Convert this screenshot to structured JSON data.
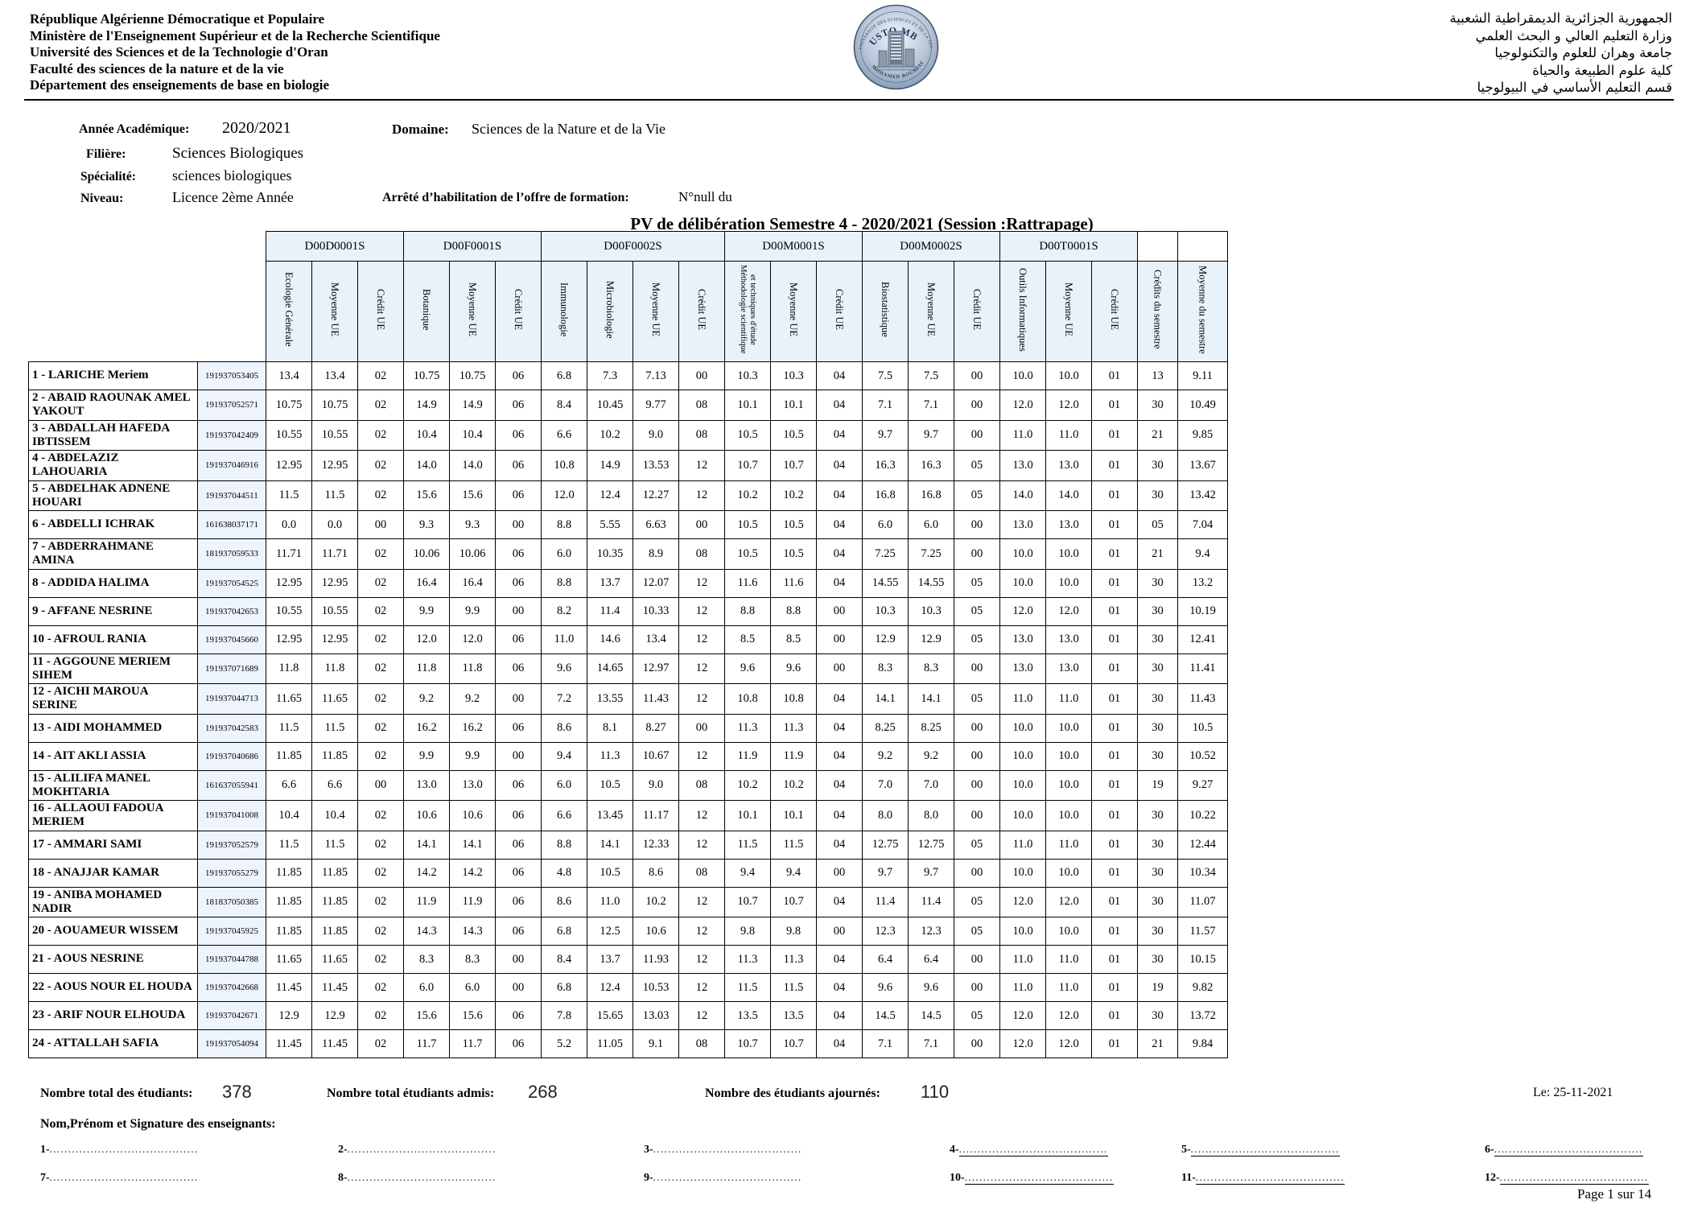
{
  "header": {
    "french_lines": [
      "République Algérienne Démocratique et Populaire",
      "Ministère de l'Enseignement Supérieur et de la Recherche Scientifique",
      "Université des Sciences et de la Technologie d'Oran",
      "Faculté des sciences de la nature et de la vie",
      "Département des enseignements de base en biologie"
    ],
    "arabic_lines": [
      "الجمهورية الجزائرية الديمقراطية الشعبية",
      "وزارة التعليم العالي و البحث العلمي",
      "جامعة وهران  للعلوم والتكنولوجيا",
      "كلية علوم الطبيعة والحياة",
      "قسم التعليم الأساسي في البيولوجيا"
    ],
    "logo": {
      "ring_top": "UNIVERSITE DES SCIENCES ET DE LA TECHNOLOGIE D'ORAN",
      "center": "USTO MB",
      "ring_bottom": "MOHAMED BOUDIAF"
    }
  },
  "info": {
    "annee_label": "Année Académique:",
    "annee_value": "2020/2021",
    "filiere_label": "Filière:",
    "filiere_value": "Sciences Biologiques",
    "specialite_label": "Spécialité:",
    "specialite_value": "sciences biologiques",
    "niveau_label": "Niveau:",
    "niveau_value": "Licence 2ème Année",
    "domaine_label": "Domaine:",
    "domaine_value": "Sciences de la Nature et de la Vie",
    "arrete_label": "Arrêté d’habilitation de l’offre de formation:",
    "arrete_value": "N°null  du"
  },
  "title": "PV de délibération Semestre 4  -  2020/2021 (Session :Rattrapage)",
  "table": {
    "groups": [
      {
        "code": "D00D0001S",
        "span": 3
      },
      {
        "code": "D00F0001S",
        "span": 3
      },
      {
        "code": "D00F0002S",
        "span": 4
      },
      {
        "code": "D00M0001S",
        "span": 3
      },
      {
        "code": "D00M0002S",
        "span": 3
      },
      {
        "code": "D00T0001S",
        "span": 3
      },
      {
        "code": "",
        "span": 1
      },
      {
        "code": "",
        "span": 1
      }
    ],
    "columns": [
      "Ecologie Générale",
      "Moyenne UE",
      "Crédit UE",
      "Botanique",
      "Moyenne UE",
      "Crédit UE",
      "Immunologie",
      "Microbiologie",
      "Moyenne UE",
      "Crédit UE",
      "Méthodologie scientifique et techniques d'étude",
      "Moyenne UE",
      "Crédit UE",
      "Biostatistique",
      "Moyenne UE",
      "Crédit UE",
      "Outils Informatiques",
      "Moyenne UE",
      "Crédit UE",
      "Crédits du semestre",
      "Moyenne du semestre"
    ],
    "rows": [
      {
        "n": "1",
        "name": "LARICHE  Meriem",
        "id": "191937053405",
        "v": [
          "13.4",
          "13.4",
          "02",
          "10.75",
          "10.75",
          "06",
          "6.8",
          "7.3",
          "7.13",
          "00",
          "10.3",
          "10.3",
          "04",
          "7.5",
          "7.5",
          "00",
          "10.0",
          "10.0",
          "01",
          "13",
          "9.11"
        ]
      },
      {
        "n": "2",
        "name": "ABAID  RAOUNAK AMEL YAKOUT",
        "id": "191937052571",
        "v": [
          "10.75",
          "10.75",
          "02",
          "14.9",
          "14.9",
          "06",
          "8.4",
          "10.45",
          "9.77",
          "08",
          "10.1",
          "10.1",
          "04",
          "7.1",
          "7.1",
          "00",
          "12.0",
          "12.0",
          "01",
          "30",
          "10.49"
        ]
      },
      {
        "n": "3",
        "name": "ABDALLAH  HAFEDA IBTISSEM",
        "id": "191937042409",
        "v": [
          "10.55",
          "10.55",
          "02",
          "10.4",
          "10.4",
          "06",
          "6.6",
          "10.2",
          "9.0",
          "08",
          "10.5",
          "10.5",
          "04",
          "9.7",
          "9.7",
          "00",
          "11.0",
          "11.0",
          "01",
          "21",
          "9.85"
        ]
      },
      {
        "n": "4",
        "name": "ABDELAZIZ  LAHOUARIA",
        "id": "191937046916",
        "v": [
          "12.95",
          "12.95",
          "02",
          "14.0",
          "14.0",
          "06",
          "10.8",
          "14.9",
          "13.53",
          "12",
          "10.7",
          "10.7",
          "04",
          "16.3",
          "16.3",
          "05",
          "13.0",
          "13.0",
          "01",
          "30",
          "13.67"
        ]
      },
      {
        "n": "5",
        "name": "ABDELHAK  ADNENE HOUARI",
        "id": "191937044511",
        "v": [
          "11.5",
          "11.5",
          "02",
          "15.6",
          "15.6",
          "06",
          "12.0",
          "12.4",
          "12.27",
          "12",
          "10.2",
          "10.2",
          "04",
          "16.8",
          "16.8",
          "05",
          "14.0",
          "14.0",
          "01",
          "30",
          "13.42"
        ]
      },
      {
        "n": "6",
        "name": "ABDELLI  ICHRAK",
        "id": "161638037171",
        "v": [
          "0.0",
          "0.0",
          "00",
          "9.3",
          "9.3",
          "00",
          "8.8",
          "5.55",
          "6.63",
          "00",
          "10.5",
          "10.5",
          "04",
          "6.0",
          "6.0",
          "00",
          "13.0",
          "13.0",
          "01",
          "05",
          "7.04"
        ]
      },
      {
        "n": "7",
        "name": "ABDERRAHMANE  AMINA",
        "id": "181937059533",
        "v": [
          "11.71",
          "11.71",
          "02",
          "10.06",
          "10.06",
          "06",
          "6.0",
          "10.35",
          "8.9",
          "08",
          "10.5",
          "10.5",
          "04",
          "7.25",
          "7.25",
          "00",
          "10.0",
          "10.0",
          "01",
          "21",
          "9.4"
        ]
      },
      {
        "n": "8",
        "name": "ADDIDA  HALIMA",
        "id": "191937054525",
        "v": [
          "12.95",
          "12.95",
          "02",
          "16.4",
          "16.4",
          "06",
          "8.8",
          "13.7",
          "12.07",
          "12",
          "11.6",
          "11.6",
          "04",
          "14.55",
          "14.55",
          "05",
          "10.0",
          "10.0",
          "01",
          "30",
          "13.2"
        ]
      },
      {
        "n": "9",
        "name": "AFFANE  NESRINE",
        "id": "191937042653",
        "v": [
          "10.55",
          "10.55",
          "02",
          "9.9",
          "9.9",
          "00",
          "8.2",
          "11.4",
          "10.33",
          "12",
          "8.8",
          "8.8",
          "00",
          "10.3",
          "10.3",
          "05",
          "12.0",
          "12.0",
          "01",
          "30",
          "10.19"
        ]
      },
      {
        "n": "10",
        "name": "AFROUL  RANIA",
        "id": "191937045660",
        "v": [
          "12.95",
          "12.95",
          "02",
          "12.0",
          "12.0",
          "06",
          "11.0",
          "14.6",
          "13.4",
          "12",
          "8.5",
          "8.5",
          "00",
          "12.9",
          "12.9",
          "05",
          "13.0",
          "13.0",
          "01",
          "30",
          "12.41"
        ]
      },
      {
        "n": "11",
        "name": "AGGOUNE  MERIEM SIHEM",
        "id": "191937071689",
        "v": [
          "11.8",
          "11.8",
          "02",
          "11.8",
          "11.8",
          "06",
          "9.6",
          "14.65",
          "12.97",
          "12",
          "9.6",
          "9.6",
          "00",
          "8.3",
          "8.3",
          "00",
          "13.0",
          "13.0",
          "01",
          "30",
          "11.41"
        ]
      },
      {
        "n": "12",
        "name": "AICHI  MAROUA SERINE",
        "id": "191937044713",
        "v": [
          "11.65",
          "11.65",
          "02",
          "9.2",
          "9.2",
          "00",
          "7.2",
          "13.55",
          "11.43",
          "12",
          "10.8",
          "10.8",
          "04",
          "14.1",
          "14.1",
          "05",
          "11.0",
          "11.0",
          "01",
          "30",
          "11.43"
        ]
      },
      {
        "n": "13",
        "name": "AIDI  MOHAMMED",
        "id": "191937042583",
        "v": [
          "11.5",
          "11.5",
          "02",
          "16.2",
          "16.2",
          "06",
          "8.6",
          "8.1",
          "8.27",
          "00",
          "11.3",
          "11.3",
          "04",
          "8.25",
          "8.25",
          "00",
          "10.0",
          "10.0",
          "01",
          "30",
          "10.5"
        ]
      },
      {
        "n": "14",
        "name": "AIT AKLI  ASSIA",
        "id": "191937040686",
        "v": [
          "11.85",
          "11.85",
          "02",
          "9.9",
          "9.9",
          "00",
          "9.4",
          "11.3",
          "10.67",
          "12",
          "11.9",
          "11.9",
          "04",
          "9.2",
          "9.2",
          "00",
          "10.0",
          "10.0",
          "01",
          "30",
          "10.52"
        ]
      },
      {
        "n": "15",
        "name": "ALILIFA  MANEL MOKHTARIA",
        "id": "161637055941",
        "v": [
          "6.6",
          "6.6",
          "00",
          "13.0",
          "13.0",
          "06",
          "6.0",
          "10.5",
          "9.0",
          "08",
          "10.2",
          "10.2",
          "04",
          "7.0",
          "7.0",
          "00",
          "10.0",
          "10.0",
          "01",
          "19",
          "9.27"
        ]
      },
      {
        "n": "16",
        "name": "ALLAOUI  FADOUA MERIEM",
        "id": "191937041008",
        "v": [
          "10.4",
          "10.4",
          "02",
          "10.6",
          "10.6",
          "06",
          "6.6",
          "13.45",
          "11.17",
          "12",
          "10.1",
          "10.1",
          "04",
          "8.0",
          "8.0",
          "00",
          "10.0",
          "10.0",
          "01",
          "30",
          "10.22"
        ]
      },
      {
        "n": "17",
        "name": "AMMARI   SAMI",
        "id": "191937052579",
        "v": [
          "11.5",
          "11.5",
          "02",
          "14.1",
          "14.1",
          "06",
          "8.8",
          "14.1",
          "12.33",
          "12",
          "11.5",
          "11.5",
          "04",
          "12.75",
          "12.75",
          "05",
          "11.0",
          "11.0",
          "01",
          "30",
          "12.44"
        ]
      },
      {
        "n": "18",
        "name": "ANAJJAR  KAMAR",
        "id": "191937055279",
        "v": [
          "11.85",
          "11.85",
          "02",
          "14.2",
          "14.2",
          "06",
          "4.8",
          "10.5",
          "8.6",
          "08",
          "9.4",
          "9.4",
          "00",
          "9.7",
          "9.7",
          "00",
          "10.0",
          "10.0",
          "01",
          "30",
          "10.34"
        ]
      },
      {
        "n": "19",
        "name": "ANIBA  MOHAMED NADIR",
        "id": "181837050385",
        "v": [
          "11.85",
          "11.85",
          "02",
          "11.9",
          "11.9",
          "06",
          "8.6",
          "11.0",
          "10.2",
          "12",
          "10.7",
          "10.7",
          "04",
          "11.4",
          "11.4",
          "05",
          "12.0",
          "12.0",
          "01",
          "30",
          "11.07"
        ]
      },
      {
        "n": "20",
        "name": "AOUAMEUR  WISSEM",
        "id": "191937045925",
        "v": [
          "11.85",
          "11.85",
          "02",
          "14.3",
          "14.3",
          "06",
          "6.8",
          "12.5",
          "10.6",
          "12",
          "9.8",
          "9.8",
          "00",
          "12.3",
          "12.3",
          "05",
          "10.0",
          "10.0",
          "01",
          "30",
          "11.57"
        ]
      },
      {
        "n": "21",
        "name": "AOUS  NESRINE",
        "id": "191937044788",
        "v": [
          "11.65",
          "11.65",
          "02",
          "8.3",
          "8.3",
          "00",
          "8.4",
          "13.7",
          "11.93",
          "12",
          "11.3",
          "11.3",
          "04",
          "6.4",
          "6.4",
          "00",
          "11.0",
          "11.0",
          "01",
          "30",
          "10.15"
        ]
      },
      {
        "n": "22",
        "name": "AOUS  NOUR EL HOUDA",
        "id": "191937042668",
        "v": [
          "11.45",
          "11.45",
          "02",
          "6.0",
          "6.0",
          "00",
          "6.8",
          "12.4",
          "10.53",
          "12",
          "11.5",
          "11.5",
          "04",
          "9.6",
          "9.6",
          "00",
          "11.0",
          "11.0",
          "01",
          "19",
          "9.82"
        ]
      },
      {
        "n": "23",
        "name": "ARIF  NOUR ELHOUDA",
        "id": "191937042671",
        "v": [
          "12.9",
          "12.9",
          "02",
          "15.6",
          "15.6",
          "06",
          "7.8",
          "15.65",
          "13.03",
          "12",
          "13.5",
          "13.5",
          "04",
          "14.5",
          "14.5",
          "05",
          "12.0",
          "12.0",
          "01",
          "30",
          "13.72"
        ]
      },
      {
        "n": "24",
        "name": "ATTALLAH  SAFIA",
        "id": "191937054094",
        "v": [
          "11.45",
          "11.45",
          "02",
          "11.7",
          "11.7",
          "06",
          "5.2",
          "11.05",
          "9.1",
          "08",
          "10.7",
          "10.7",
          "04",
          "7.1",
          "7.1",
          "00",
          "12.0",
          "12.0",
          "01",
          "21",
          "9.84"
        ]
      }
    ]
  },
  "footer": {
    "total_label": "Nombre total des étudiants:",
    "total_value": "378",
    "admis_label": "Nombre total étudiants admis:",
    "admis_value": "268",
    "ajournes_label": "Nombre des étudiants ajournés:",
    "ajournes_value": "110",
    "date": "Le: 25-11-2021",
    "signature_header": "Nom,Prénom et Signature des enseignants:",
    "signature_rows": [
      [
        "1-",
        "2-",
        "3-",
        "4-",
        "5-",
        "6-"
      ],
      [
        "7-",
        "8-",
        "9-",
        "10-",
        "11-",
        "12-"
      ]
    ],
    "dots": "........................................",
    "page": "Page 1 sur 14"
  }
}
